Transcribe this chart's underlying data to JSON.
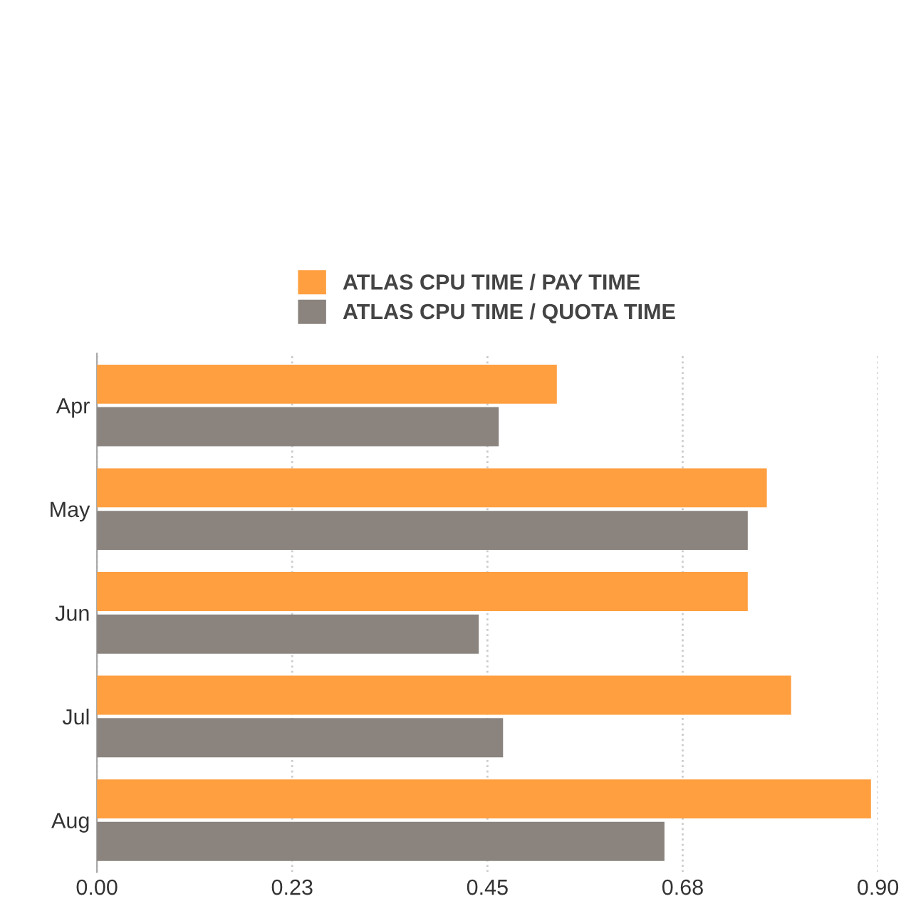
{
  "chart_data": {
    "type": "bar",
    "orientation": "horizontal",
    "categories": [
      "Apr",
      "May",
      "Jun",
      "Jul",
      "Aug"
    ],
    "series": [
      {
        "name": "ATLAS CPU TIME / PAY TIME",
        "color": "#ff9f40",
        "values": [
          0.53,
          0.772,
          0.75,
          0.8,
          0.892
        ]
      },
      {
        "name": "ATLAS CPU TIME / QUOTA TIME",
        "color": "#8a837e",
        "values": [
          0.463,
          0.75,
          0.44,
          0.468,
          0.654
        ]
      }
    ],
    "xlim": [
      0,
      0.9
    ],
    "xticks": [
      {
        "value": 0,
        "label": "0.00"
      },
      {
        "value": 0.225,
        "label": "0.23"
      },
      {
        "value": 0.45,
        "label": "0.45"
      },
      {
        "value": 0.675,
        "label": "0.68"
      },
      {
        "value": 0.9,
        "label": "0.90"
      }
    ],
    "grid": "x",
    "legend": "top"
  }
}
